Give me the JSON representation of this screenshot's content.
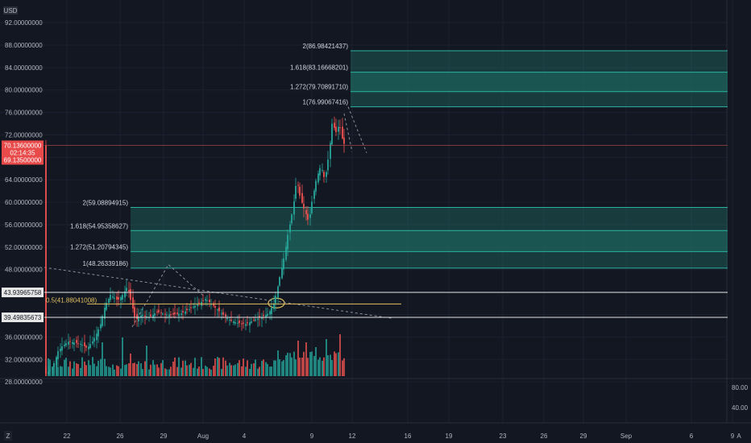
{
  "chart_data": {
    "type": "candlestick",
    "symbol_currency": "USD",
    "price_axis": {
      "ticks": [
        "92.00000000",
        "88.00000000",
        "84.00000000",
        "80.00000000",
        "76.00000000",
        "72.00000000",
        "64.00000000",
        "60.00000000",
        "56.00000000",
        "52.00000000",
        "48.00000000",
        "36.00000000",
        "32.00000000",
        "28.00000000"
      ],
      "tick_values": [
        92,
        88,
        84,
        80,
        76,
        72,
        64,
        60,
        56,
        52,
        48,
        36,
        32,
        28
      ],
      "range": [
        25.7,
        93
      ]
    },
    "volume_axis": {
      "ticks": [
        "80.00",
        "40.00"
      ]
    },
    "time_axis": {
      "labels": [
        "22",
        "26",
        "29",
        "Aug",
        "4",
        "9",
        "12",
        "16",
        "19",
        "23",
        "26",
        "29",
        "Sep",
        "6",
        "9"
      ]
    },
    "current_price": {
      "price": "70.13600000",
      "countdown": "02:14:35",
      "low": "69.13500000",
      "value": 70.136,
      "low_value": 69.135
    },
    "horizontal_levels": [
      {
        "label": "43.93965758",
        "value": 43.94
      },
      {
        "label": "39.49835673",
        "value": 39.5
      }
    ],
    "fib_upper": [
      {
        "label": "2(86.98421437)",
        "value": 86.984
      },
      {
        "label": "1.618(83.16668201)",
        "value": 83.167
      },
      {
        "label": "1.272(79.70891710)",
        "value": 79.709
      },
      {
        "label": "1(76.99067416)",
        "value": 76.991
      }
    ],
    "fib_lower": [
      {
        "label": "2(59.08894915)",
        "value": 59.089
      },
      {
        "label": "1.618(54.95358627)",
        "value": 54.954
      },
      {
        "label": "1.272(51.20794345)",
        "value": 51.208
      },
      {
        "label": "1(48.26339186)",
        "value": 48.263
      }
    ],
    "fib_orange": {
      "label": "0.5(41.88041008)",
      "value": 41.88
    },
    "colors": {
      "up": "#26a69a",
      "down": "#ef5350",
      "zone": "#1e6b62",
      "orange": "#e0c060",
      "background": "#131722"
    }
  },
  "footer": {
    "left_icon": "Z",
    "right_icon": "A"
  }
}
